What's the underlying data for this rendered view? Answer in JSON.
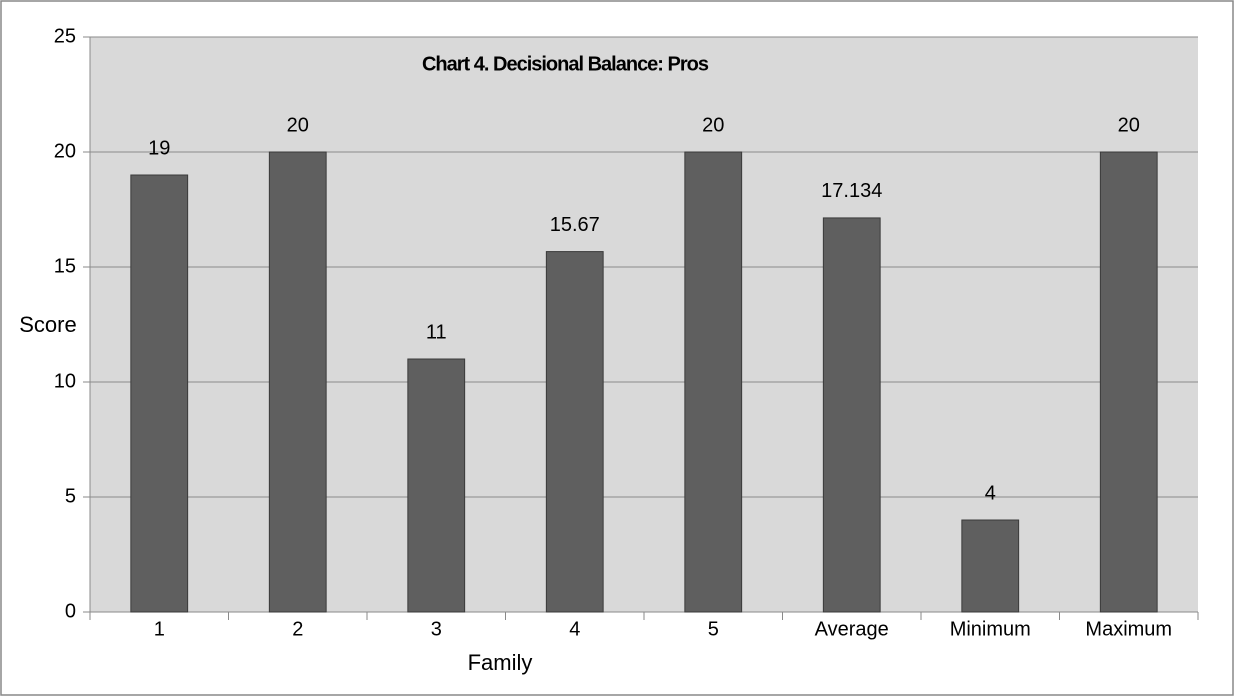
{
  "chart_data": {
    "type": "bar",
    "title": "Chart 4. Decisional Balance: Pros",
    "x_label": "Family",
    "y_label": "Score",
    "categories": [
      "1",
      "2",
      "3",
      "4",
      "5",
      "Average",
      "Minimum",
      "Maximum"
    ],
    "values": [
      19,
      20,
      11,
      15.67,
      20,
      17.134,
      4,
      20
    ],
    "color": "#5f5f5f",
    "ylim": [
      0,
      25
    ],
    "yticks": [
      0,
      5,
      10,
      15,
      20,
      25
    ],
    "grid": true
  }
}
